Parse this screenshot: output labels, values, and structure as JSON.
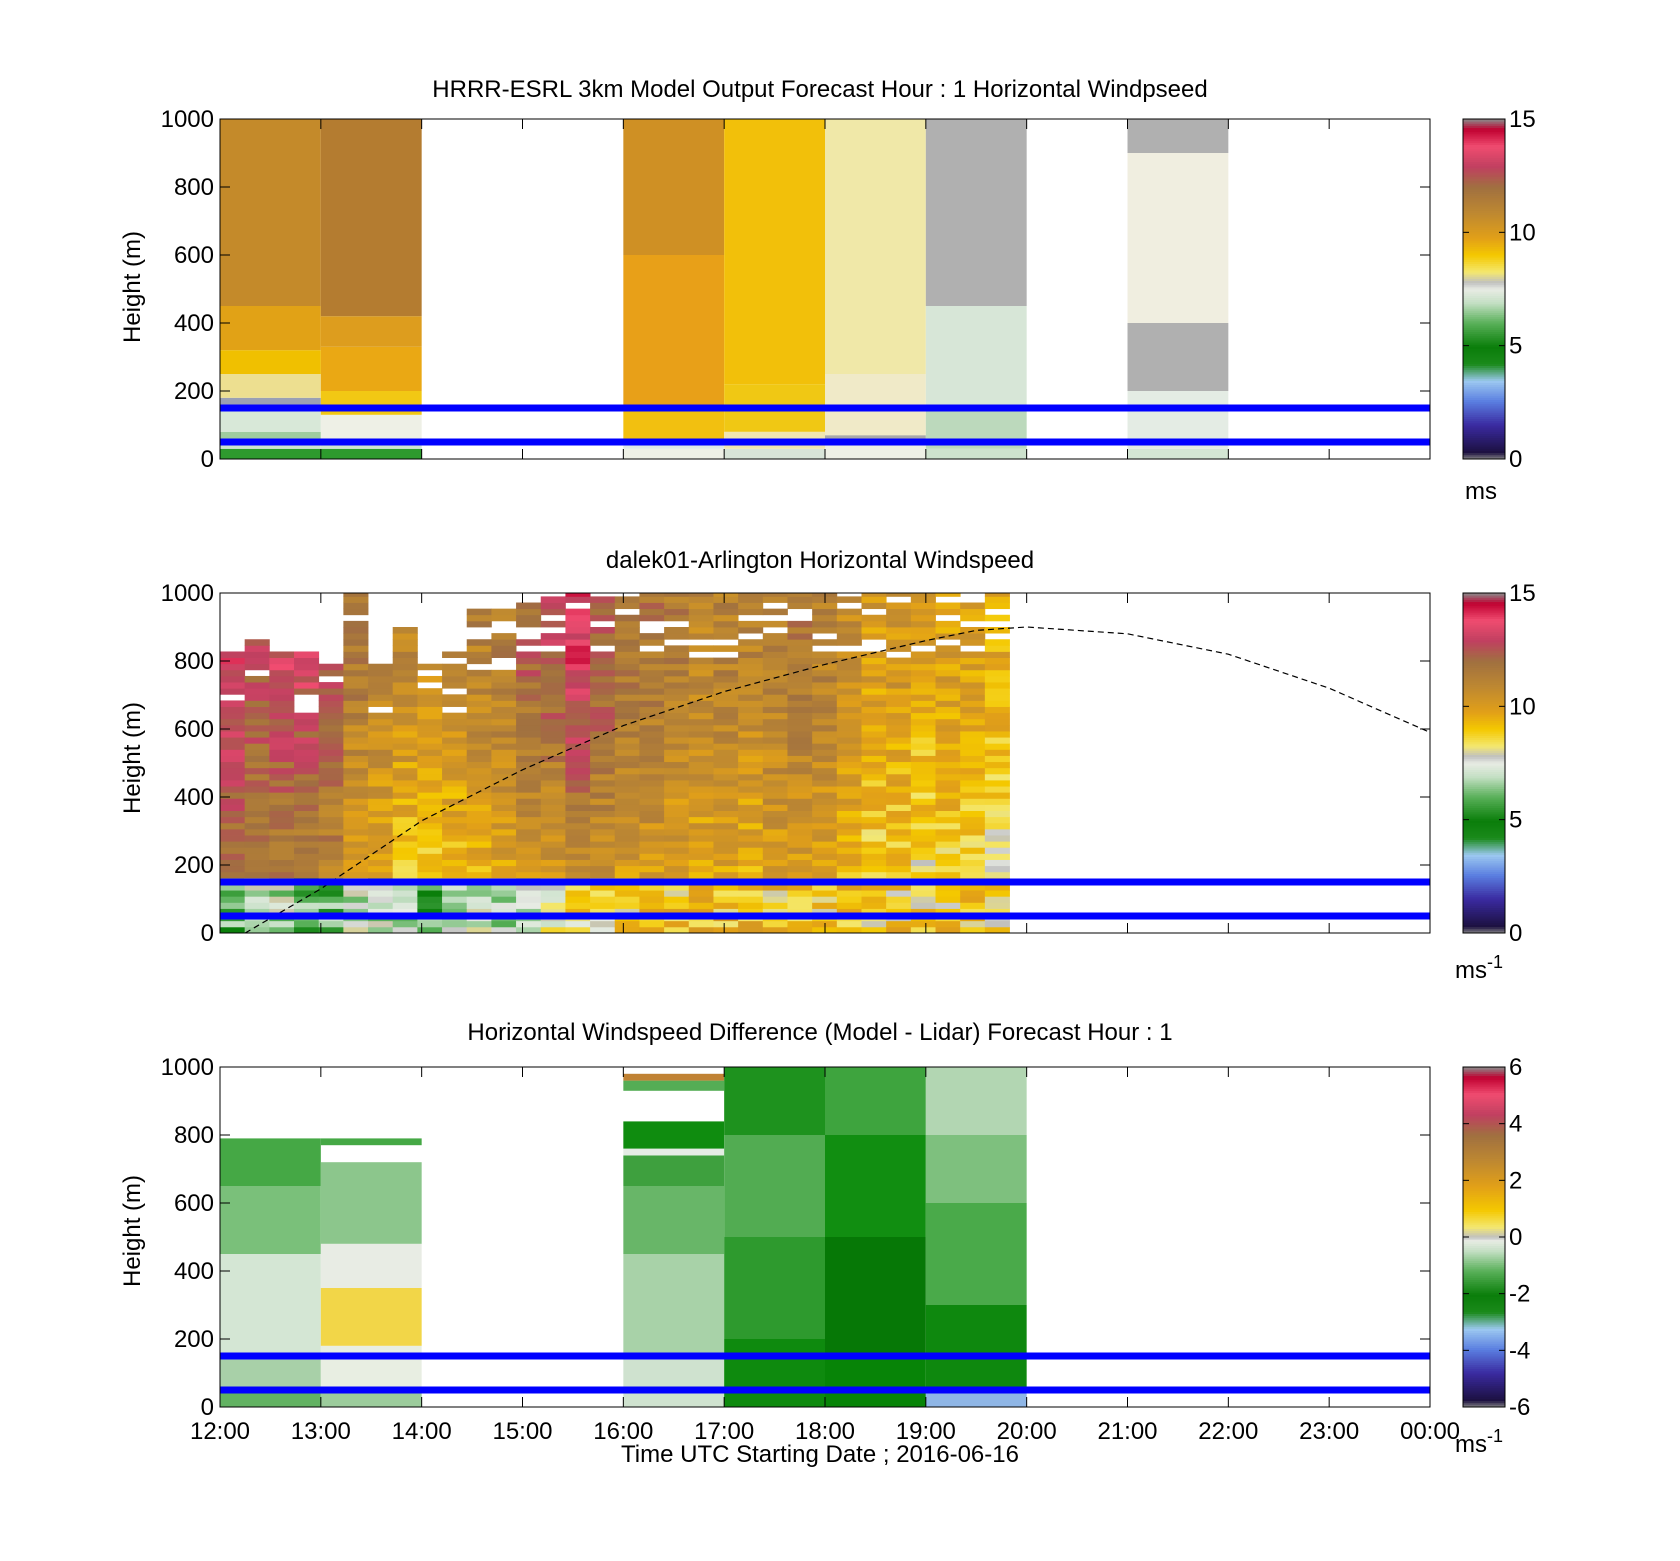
{
  "chart_data": [
    {
      "type": "heatmap",
      "title": "HRRR-ESRL 3km Model Output   Forecast Hour : 1 Horizontal Windpseed",
      "ylabel": "Height (m)",
      "xlabel": "",
      "ylim": [
        0,
        1000
      ],
      "yticks": [
        "0",
        "200",
        "400",
        "600",
        "800",
        "1000"
      ],
      "xlim_hours": [
        12,
        24
      ],
      "colorbar": {
        "min": 0,
        "max": 15,
        "ticks": [
          "0",
          "5",
          "10",
          "15"
        ],
        "unit_label": "ms",
        "unit_sup": ""
      },
      "hlines": [
        50,
        150
      ],
      "columns": [
        {
          "x0": 12,
          "x1": 13,
          "cells": [
            [
              0,
              30,
              "#2e9a2e"
            ],
            [
              30,
              50,
              "#cfe3cf"
            ],
            [
              50,
              80,
              "#9fcc9f"
            ],
            [
              80,
              160,
              "#d8e8d8"
            ],
            [
              160,
              180,
              "#9aa0b4"
            ],
            [
              180,
              250,
              "#eddf90"
            ],
            [
              250,
              320,
              "#f0c000"
            ],
            [
              320,
              450,
              "#e1a216"
            ],
            [
              450,
              1000,
              "#c48a2a"
            ]
          ]
        },
        {
          "x0": 13,
          "x1": 14,
          "cells": [
            [
              0,
              30,
              "#2e9a2e"
            ],
            [
              30,
              60,
              "#d0e4d0"
            ],
            [
              60,
              130,
              "#eef0e6"
            ],
            [
              130,
              200,
              "#f2c814"
            ],
            [
              200,
              330,
              "#eaa814"
            ],
            [
              330,
              420,
              "#dd9d1e"
            ],
            [
              420,
              1000,
              "#b47c30"
            ]
          ]
        },
        {
          "x0": 16,
          "x1": 17,
          "cells": [
            [
              0,
              30,
              "#eef0e6"
            ],
            [
              30,
              60,
              "#e0e8e8"
            ],
            [
              60,
              140,
              "#f2c010"
            ],
            [
              140,
              600,
              "#e8a018"
            ],
            [
              600,
              1000,
              "#cf9024"
            ]
          ]
        },
        {
          "x0": 17,
          "x1": 18,
          "cells": [
            [
              0,
              30,
              "#d8e4d8"
            ],
            [
              30,
              80,
              "#f0e6b0"
            ],
            [
              80,
              220,
              "#f0c814"
            ],
            [
              220,
              1000,
              "#f2c00a"
            ]
          ]
        },
        {
          "x0": 18,
          "x1": 19,
          "cells": [
            [
              0,
              50,
              "#eef0e6"
            ],
            [
              50,
              70,
              "#a8a8a8"
            ],
            [
              70,
              250,
              "#f0eac8"
            ],
            [
              250,
              1000,
              "#f0e8a8"
            ]
          ]
        },
        {
          "x0": 19,
          "x1": 20,
          "cells": [
            [
              0,
              30,
              "#cde2cd"
            ],
            [
              30,
              150,
              "#bcd9bc"
            ],
            [
              150,
              450,
              "#d7e6d7"
            ],
            [
              450,
              1000,
              "#b0b0b0"
            ]
          ]
        },
        {
          "x0": 21,
          "x1": 22,
          "cells": [
            [
              0,
              30,
              "#d4e6d4"
            ],
            [
              30,
              200,
              "#e4ece4"
            ],
            [
              200,
              400,
              "#b0b0b0"
            ],
            [
              400,
              900,
              "#f0eee0"
            ],
            [
              900,
              1000,
              "#b0b0b0"
            ]
          ]
        }
      ]
    },
    {
      "type": "heatmap",
      "title": "dalek01-Arlington  Horizontal Windspeed",
      "ylabel": "Height (m)",
      "xlabel": "",
      "ylim": [
        0,
        1000
      ],
      "yticks": [
        "0",
        "200",
        "400",
        "600",
        "800",
        "1000"
      ],
      "xlim_hours": [
        12,
        24
      ],
      "colorbar": {
        "min": 0,
        "max": 15,
        "ticks": [
          "0",
          "5",
          "10",
          "15"
        ],
        "unit_label": "ms",
        "unit_sup": "-1"
      },
      "hlines": [
        50,
        150
      ],
      "lidar": {
        "t_start": 12,
        "t_end": 19.83,
        "bin_hours": 0.25,
        "slots": [
          {
            "top": 820,
            "lo": 11.3,
            "hi": 13.4,
            "low": 6
          },
          {
            "top": 850,
            "lo": 11.0,
            "hi": 12.6,
            "low": 7
          },
          {
            "top": 820,
            "lo": 11.0,
            "hi": 13.0,
            "low": 7
          },
          {
            "top": 830,
            "lo": 10.8,
            "hi": 13.2,
            "low": 6
          },
          {
            "top": 790,
            "lo": 10.8,
            "hi": 12.4,
            "low": 6
          },
          {
            "top": 1000,
            "lo": 9.2,
            "hi": 11.6,
            "low": 7
          },
          {
            "top": 780,
            "lo": 9.0,
            "hi": 11.2,
            "low": 7
          },
          {
            "top": 900,
            "lo": 8.6,
            "hi": 10.8,
            "low": 7
          },
          {
            "top": 800,
            "lo": 8.2,
            "hi": 10.6,
            "low": 6
          },
          {
            "top": 820,
            "lo": 8.6,
            "hi": 10.8,
            "low": 7
          },
          {
            "top": 950,
            "lo": 9.0,
            "hi": 11.2,
            "low": 7
          },
          {
            "top": 950,
            "lo": 9.2,
            "hi": 11.4,
            "low": 7
          },
          {
            "top": 960,
            "lo": 9.4,
            "hi": 12.2,
            "low": 7
          },
          {
            "top": 980,
            "lo": 9.4,
            "hi": 12.6,
            "low": 8
          },
          {
            "top": 1000,
            "lo": 10.2,
            "hi": 13.6,
            "low": 8.5
          },
          {
            "top": 1000,
            "lo": 10.0,
            "hi": 12.4,
            "low": 8.5
          },
          {
            "top": 1000,
            "lo": 9.6,
            "hi": 11.8,
            "low": 8.8
          },
          {
            "top": 1000,
            "lo": 9.8,
            "hi": 11.6,
            "low": 9
          },
          {
            "top": 1000,
            "lo": 9.4,
            "hi": 11.4,
            "low": 9
          },
          {
            "top": 1000,
            "lo": 9.2,
            "hi": 11.0,
            "low": 9
          },
          {
            "top": 1000,
            "lo": 9.4,
            "hi": 11.2,
            "low": 9
          },
          {
            "top": 1000,
            "lo": 9.2,
            "hi": 11.0,
            "low": 9
          },
          {
            "top": 1000,
            "lo": 9.4,
            "hi": 11.4,
            "low": 9
          },
          {
            "top": 1000,
            "lo": 9.6,
            "hi": 11.6,
            "low": 9
          },
          {
            "top": 1000,
            "lo": 9.4,
            "hi": 11.2,
            "low": 9
          },
          {
            "top": 1000,
            "lo": 8.8,
            "hi": 10.6,
            "low": 9
          },
          {
            "top": 1000,
            "lo": 8.2,
            "hi": 10.0,
            "low": 8.8
          },
          {
            "top": 1000,
            "lo": 8.4,
            "hi": 10.2,
            "low": 8.8
          },
          {
            "top": 1000,
            "lo": 8.2,
            "hi": 9.8,
            "low": 8.8
          },
          {
            "top": 1000,
            "lo": 8.4,
            "hi": 10.0,
            "low": 8.8
          },
          {
            "top": 1000,
            "lo": 8.4,
            "hi": 9.8,
            "low": 8.8
          },
          {
            "top": 1000,
            "lo": 7.8,
            "hi": 9.6,
            "low": 8.8
          }
        ]
      },
      "curve": {
        "x": [
          12.25,
          13,
          14,
          15,
          16,
          17,
          18,
          19,
          19.5,
          20,
          21,
          22,
          23,
          24
        ],
        "y": [
          0,
          130,
          330,
          480,
          610,
          710,
          790,
          860,
          890,
          900,
          880,
          820,
          720,
          590
        ]
      }
    },
    {
      "type": "heatmap",
      "title": "Horizontal Windspeed Difference (Model - Lidar) Forecast Hour : 1",
      "ylabel": "Height (m)",
      "xlabel": "Time UTC  Starting Date ; 2016-06-16",
      "ylim": [
        0,
        1000
      ],
      "yticks": [
        "0",
        "200",
        "400",
        "600",
        "800",
        "1000"
      ],
      "xlim_hours": [
        12,
        24
      ],
      "xticks": [
        "12:00",
        "13:00",
        "14:00",
        "15:00",
        "16:00",
        "17:00",
        "18:00",
        "19:00",
        "20:00",
        "21:00",
        "22:00",
        "23:00",
        "00:00"
      ],
      "colorbar": {
        "min": -6,
        "max": 6,
        "ticks": [
          "-6",
          "-4",
          "-2",
          "0",
          "2",
          "4",
          "6"
        ],
        "unit_label": "ms",
        "unit_sup": "-1"
      },
      "hlines": [
        50,
        150
      ],
      "columns": [
        {
          "x0": 12,
          "x1": 13,
          "cells": [
            [
              0,
              40,
              "#62b262"
            ],
            [
              40,
              150,
              "#a8d0a8"
            ],
            [
              150,
              450,
              "#d4e6d4"
            ],
            [
              450,
              650,
              "#7ac07a"
            ],
            [
              650,
              790,
              "#45a845"
            ]
          ]
        },
        {
          "x0": 13,
          "x1": 14,
          "cells": [
            [
              0,
              40,
              "#9ccc9c"
            ],
            [
              40,
              180,
              "#e8eee2"
            ],
            [
              180,
              350,
              "#f2d648"
            ],
            [
              350,
              480,
              "#e8ece4"
            ],
            [
              480,
              720,
              "#8cc68c"
            ],
            [
              770,
              790,
              "#45a845"
            ]
          ]
        },
        {
          "x0": 16,
          "x1": 17,
          "cells": [
            [
              0,
              150,
              "#cfe2cf"
            ],
            [
              150,
              450,
              "#a8d2a8"
            ],
            [
              450,
              650,
              "#68b668"
            ],
            [
              650,
              740,
              "#3ea03e"
            ],
            [
              740,
              760,
              "#e4ece4"
            ],
            [
              760,
              840,
              "#0f8c0f"
            ],
            [
              930,
              960,
              "#55ad55"
            ],
            [
              960,
              980,
              "#c08234"
            ]
          ]
        },
        {
          "x0": 17,
          "x1": 18,
          "cells": [
            [
              0,
              200,
              "#0e8a0e"
            ],
            [
              200,
              500,
              "#2e9a2e"
            ],
            [
              500,
              800,
              "#52ac52"
            ],
            [
              800,
              1000,
              "#1e921e"
            ]
          ]
        },
        {
          "x0": 18,
          "x1": 19,
          "cells": [
            [
              0,
              150,
              "#078407"
            ],
            [
              150,
              500,
              "#067806"
            ],
            [
              500,
              800,
              "#118e11"
            ],
            [
              800,
              1000,
              "#3ea43e"
            ]
          ]
        },
        {
          "x0": 19,
          "x1": 20,
          "cells": [
            [
              0,
              40,
              "#8fb6e6"
            ],
            [
              40,
              300,
              "#0e880e"
            ],
            [
              300,
              600,
              "#4aaa4a"
            ],
            [
              600,
              800,
              "#7ec07e"
            ],
            [
              800,
              1000,
              "#b2d6b2"
            ]
          ]
        }
      ]
    }
  ]
}
